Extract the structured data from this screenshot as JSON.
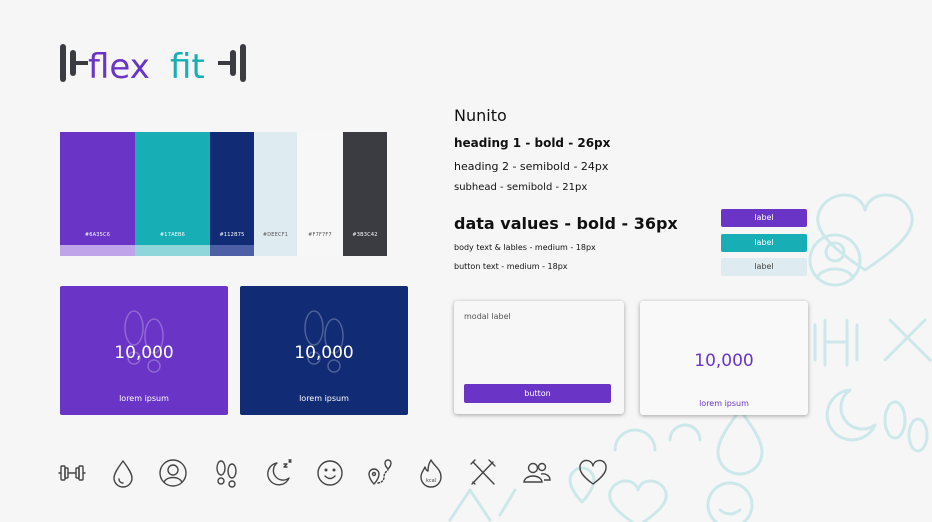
{
  "logo": {
    "part1": "flex",
    "part2": "fit",
    "color_primary": "#6A35C6",
    "color_secondary": "#17AEB6",
    "color_bar": "#3B3C42"
  },
  "palette": [
    {
      "hex": "#6A35C6",
      "label": "#6A35C6",
      "tint": "#BFA4EA",
      "label_color": "#ffffff"
    },
    {
      "hex": "#17AEB6",
      "label": "#17AEB6",
      "tint": "#8ED6DA",
      "label_color": "#ffffff"
    },
    {
      "hex": "#112B75",
      "label": "#112B75",
      "tint": "#4D60A6",
      "label_color": "#ffffff"
    },
    {
      "hex": "#DEECF1",
      "label": "#DEECF1",
      "tint": "#DEECF1",
      "label_color": "#555555"
    },
    {
      "hex": "#F7F7F7",
      "label": "#F7F7F7",
      "tint": "#F7F7F7",
      "label_color": "#555555"
    },
    {
      "hex": "#3B3C42",
      "label": "#3B3C42",
      "tint": "#3B3C42",
      "label_color": "#ffffff"
    }
  ],
  "typography": {
    "family": "Nunito",
    "heading1": "heading 1 - bold - 26px",
    "heading2": "heading 2 - semibold - 24px",
    "subhead": "subhead - semibold - 21px",
    "data_values": "data values -  bold - 36px",
    "body_text": "body text & lables - medium - 18px",
    "button_text": "button text - medium - 18px"
  },
  "chips": [
    "label",
    "label",
    "label"
  ],
  "stat_cards": [
    {
      "value": "10,000",
      "caption": "lorem ipsum"
    },
    {
      "value": "10,000",
      "caption": "lorem ipsum"
    }
  ],
  "modal": {
    "label": "modal label",
    "button": "button"
  },
  "white_card": {
    "value": "10,000",
    "caption": "lorem ipsum"
  },
  "icons": [
    "dumbbell-icon",
    "water-drop-icon",
    "profile-icon",
    "footsteps-icon",
    "sleep-moon-icon",
    "smiley-icon",
    "route-pin-icon",
    "calories-flame-icon",
    "fork-knife-icon",
    "users-icon",
    "heart-icon"
  ],
  "flame_label": "kcal"
}
